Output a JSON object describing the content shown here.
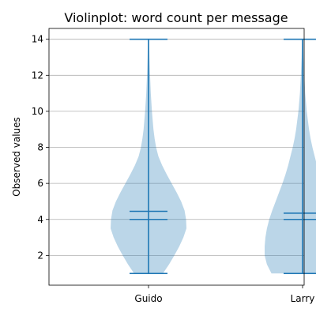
{
  "chart_data": {
    "type": "violin",
    "title": "Violinplot: word count per message",
    "ylabel": "Observed values",
    "xlabel": "",
    "ylim": [
      0.35,
      14.6
    ],
    "yticks": [
      2,
      4,
      6,
      8,
      10,
      12,
      14
    ],
    "grid": "y",
    "categories": [
      "Guido",
      "Larry"
    ],
    "body_color": "#1f77b4",
    "violins": [
      {
        "category": "Guido",
        "min": 1,
        "max": 14,
        "mean": 4.45,
        "median": 4.0,
        "profile": [
          [
            1.0,
            0.38
          ],
          [
            1.5,
            0.54
          ],
          [
            2.0,
            0.68
          ],
          [
            2.5,
            0.81
          ],
          [
            3.0,
            0.92
          ],
          [
            3.5,
            1.0
          ],
          [
            4.0,
            0.99
          ],
          [
            4.5,
            0.95
          ],
          [
            5.0,
            0.86
          ],
          [
            5.5,
            0.74
          ],
          [
            6.0,
            0.61
          ],
          [
            6.5,
            0.48
          ],
          [
            7.0,
            0.36
          ],
          [
            7.5,
            0.26
          ],
          [
            8.0,
            0.2
          ],
          [
            8.5,
            0.16
          ],
          [
            9.0,
            0.13
          ],
          [
            10.0,
            0.09
          ],
          [
            11.0,
            0.06
          ],
          [
            12.0,
            0.04
          ],
          [
            13.0,
            0.025
          ],
          [
            14.0,
            0.015
          ]
        ]
      },
      {
        "category": "Larry",
        "min": 1,
        "max": 14,
        "mean": 4.35,
        "median": 4.0,
        "profile": [
          [
            1.0,
            0.82
          ],
          [
            1.5,
            0.94
          ],
          [
            2.0,
            1.0
          ],
          [
            2.5,
            1.0
          ],
          [
            3.0,
            0.98
          ],
          [
            3.5,
            0.94
          ],
          [
            4.0,
            0.88
          ],
          [
            4.5,
            0.8
          ],
          [
            5.0,
            0.71
          ],
          [
            5.5,
            0.62
          ],
          [
            6.0,
            0.53
          ],
          [
            6.5,
            0.45
          ],
          [
            7.0,
            0.38
          ],
          [
            7.5,
            0.32
          ],
          [
            8.0,
            0.26
          ],
          [
            8.5,
            0.21
          ],
          [
            9.0,
            0.17
          ],
          [
            10.0,
            0.11
          ],
          [
            11.0,
            0.07
          ],
          [
            12.0,
            0.045
          ],
          [
            13.0,
            0.025
          ],
          [
            14.0,
            0.015
          ]
        ]
      }
    ]
  }
}
